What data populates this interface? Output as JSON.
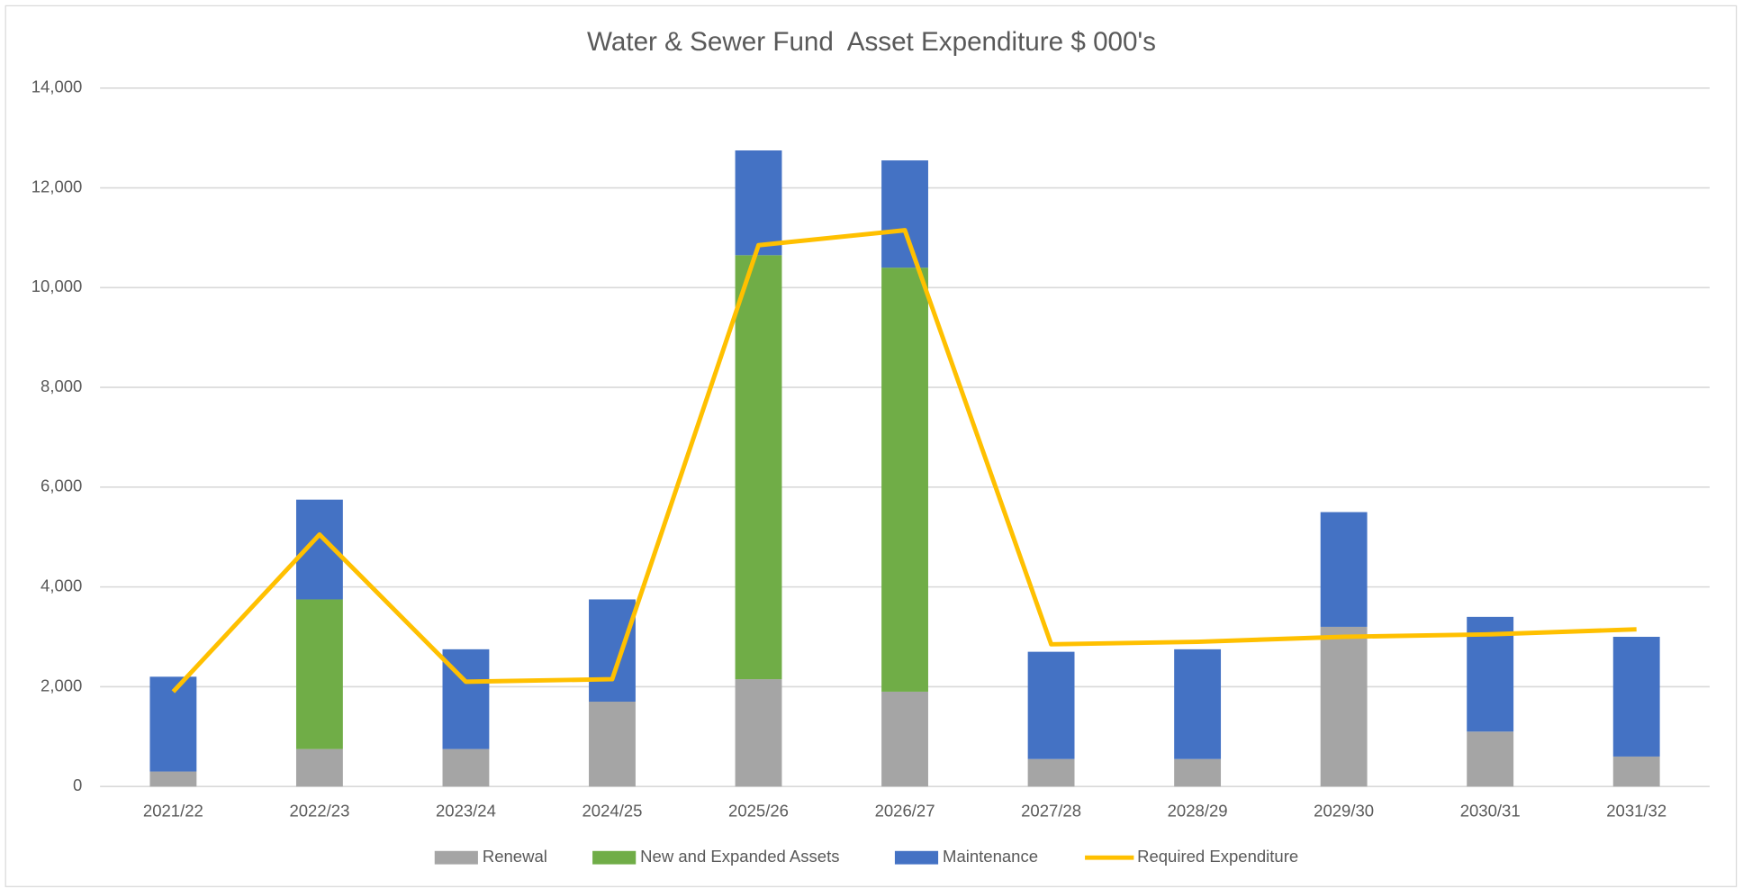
{
  "chart_data": {
    "type": "stacked_bar_line",
    "title": "Water & Sewer Fund  Asset Expenditure $ 000's",
    "categories": [
      "2021/22",
      "2022/23",
      "2023/24",
      "2024/25",
      "2025/26",
      "2026/27",
      "2027/28",
      "2028/29",
      "2029/30",
      "2030/31",
      "2031/32"
    ],
    "series": [
      {
        "name": "Renewal",
        "color": "#a5a5a5",
        "kind": "bar",
        "values": [
          300,
          750,
          750,
          1700,
          2150,
          1900,
          550,
          550,
          3200,
          1100,
          600
        ]
      },
      {
        "name": "New and Expanded Assets",
        "color": "#70ad47",
        "kind": "bar",
        "values": [
          0,
          3000,
          0,
          0,
          8500,
          8500,
          0,
          0,
          0,
          0,
          0
        ]
      },
      {
        "name": "Maintenance",
        "color": "#4472c4",
        "kind": "bar",
        "values": [
          1900,
          2000,
          2000,
          2050,
          2100,
          2150,
          2150,
          2200,
          2300,
          2300,
          2400
        ]
      },
      {
        "name": "Required Expenditure",
        "color": "#ffc000",
        "kind": "line",
        "values": [
          1900,
          5050,
          2100,
          2150,
          10850,
          11150,
          2850,
          2900,
          3000,
          3050,
          3150
        ]
      }
    ],
    "ylim": [
      0,
      14000
    ],
    "yticks": [
      0,
      {
        "value": 2000,
        "label": "2,000"
      },
      {
        "value": 4000,
        "label": "4,000"
      },
      {
        "value": 6000,
        "label": "6,000"
      },
      {
        "value": 8000,
        "label": "8,000"
      },
      {
        "value": 10000,
        "label": "10,000"
      },
      {
        "value": 12000,
        "label": "12,000"
      },
      {
        "value": 14000,
        "label": "14,000"
      }
    ],
    "grid": true,
    "legend": "bottom"
  }
}
